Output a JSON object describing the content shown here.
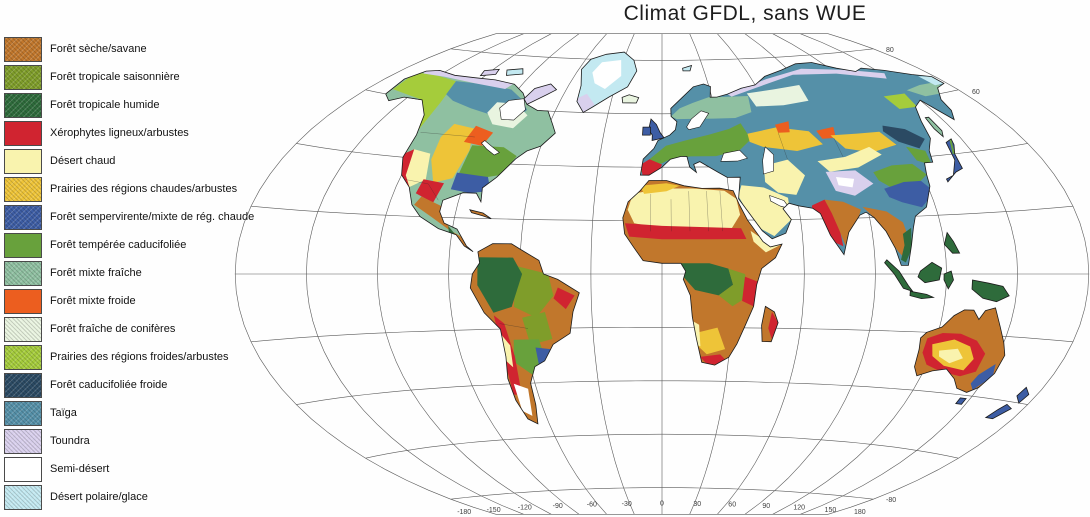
{
  "title": "Climat GFDL, sans WUE",
  "legend": {
    "items": [
      {
        "key": "savane",
        "label": "Forêt sèche/savane",
        "color": "#c1772c",
        "hatched": true
      },
      {
        "key": "trop_saison",
        "label": "Forêt tropicale saisonnière",
        "color": "#7f9d2a",
        "hatched": true
      },
      {
        "key": "trop_humide",
        "label": "Forêt tropicale humide",
        "color": "#2e6b3b",
        "hatched": true
      },
      {
        "key": "xero",
        "label": "Xérophytes ligneux/arbustes",
        "color": "#d02430",
        "hatched": false
      },
      {
        "key": "desert_chaud",
        "label": "Désert chaud",
        "color": "#f9f3ae",
        "hatched": false
      },
      {
        "key": "prairies_chaudes",
        "label": "Prairies des régions chaudes/arbustes",
        "color": "#eec438",
        "hatched": true
      },
      {
        "key": "semperv",
        "label": "Forêt sempervirente/mixte de rég. chaude",
        "color": "#3d5da4",
        "hatched": true
      },
      {
        "key": "temp_caduc",
        "label": "Forêt tempérée caducifoliée",
        "color": "#68a13c",
        "hatched": false
      },
      {
        "key": "mixte_fraiche",
        "label": "Forêt mixte fraîche",
        "color": "#8fc0a1",
        "hatched": true
      },
      {
        "key": "mixte_froide",
        "label": "Forêt mixte froide",
        "color": "#ec5e1f",
        "hatched": false
      },
      {
        "key": "conif_fraiche",
        "label": "Forêt fraîche de conifères",
        "color": "#e9f4e0",
        "hatched": true
      },
      {
        "key": "prairies_froides",
        "label": "Prairies des régions froides/arbustes",
        "color": "#a5cc3b",
        "hatched": true
      },
      {
        "key": "caduc_froide",
        "label": "Forêt caducifoliée froide",
        "color": "#2b4a63",
        "hatched": true
      },
      {
        "key": "taiga",
        "label": "Taïga",
        "color": "#5590a8",
        "hatched": true
      },
      {
        "key": "toundra",
        "label": "Toundra",
        "color": "#d9d0ed",
        "hatched": true
      },
      {
        "key": "semi_desert",
        "label": "Semi-désert",
        "color": "#ffffff",
        "hatched": false
      },
      {
        "key": "polaire",
        "label": "Désert polaire/glace",
        "color": "#c3e9f1",
        "hatched": true
      }
    ]
  },
  "map": {
    "ocean_color": "#ffffff",
    "graticule_color": "#5a5a5a",
    "coastline_color": "#1b1b1b",
    "longitude_labels": [
      "-180",
      "-150",
      "-120",
      "-90",
      "-60",
      "-30",
      "0",
      "30",
      "60",
      "90",
      "120",
      "150",
      "180"
    ],
    "latitude_labels": [
      "80",
      "60",
      "-80"
    ]
  }
}
